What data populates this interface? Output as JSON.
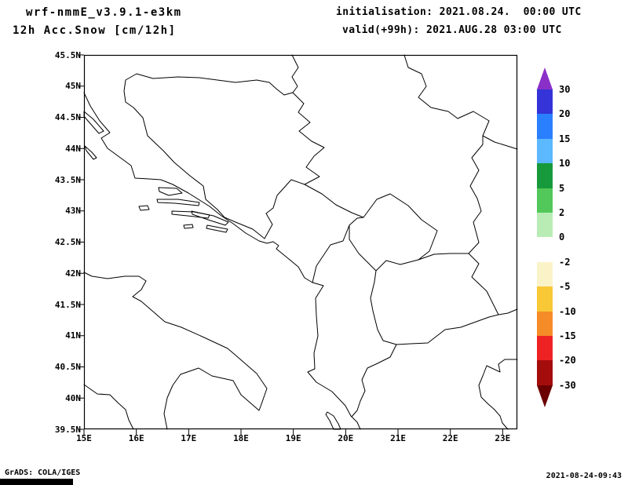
{
  "header": {
    "model_version": "wrf-nmmE_v3.9.1-e3km",
    "product": "12h Acc.Snow [cm/12h]",
    "initialisation": "initialisation: 2021.08.24.  00:00 UTC",
    "valid": "valid(+99h): 2021.AUG.28 03:00 UTC"
  },
  "axes": {
    "lat_ticks": [
      {
        "label": "45.5N",
        "value": 45.5
      },
      {
        "label": "45N",
        "value": 45
      },
      {
        "label": "44.5N",
        "value": 44.5
      },
      {
        "label": "44N",
        "value": 44
      },
      {
        "label": "43.5N",
        "value": 43.5
      },
      {
        "label": "43N",
        "value": 43
      },
      {
        "label": "42.5N",
        "value": 42.5
      },
      {
        "label": "42N",
        "value": 42
      },
      {
        "label": "41.5N",
        "value": 41.5
      },
      {
        "label": "41N",
        "value": 41
      },
      {
        "label": "40.5N",
        "value": 40.5
      },
      {
        "label": "40N",
        "value": 40
      },
      {
        "label": "39.5N",
        "value": 39.5
      }
    ],
    "lon_ticks": [
      {
        "label": "15E",
        "value": 15
      },
      {
        "label": "16E",
        "value": 16
      },
      {
        "label": "17E",
        "value": 17
      },
      {
        "label": "18E",
        "value": 18
      },
      {
        "label": "19E",
        "value": 19
      },
      {
        "label": "20E",
        "value": 20
      },
      {
        "label": "21E",
        "value": 21
      },
      {
        "label": "22E",
        "value": 22
      },
      {
        "label": "23E",
        "value": 23
      }
    ]
  },
  "colorbar": {
    "labels": [
      "30",
      "20",
      "15",
      "10",
      "5",
      "2",
      "0",
      "-2",
      "-5",
      "-10",
      "-15",
      "-20",
      "-30"
    ],
    "top_color": "#8b2fc9",
    "bottom_color": "#6b0000",
    "segment_colors": [
      "#3434d8",
      "#2a7fff",
      "#5cb8ff",
      "#169a3c",
      "#52c85a",
      "#b9ecb4",
      "#ffffff",
      "#fbf3c8",
      "#f8c836",
      "#f58c28",
      "#ee2222",
      "#a50d0d"
    ]
  },
  "footer": {
    "credit": "GrADS: COLA/IGES",
    "timestamp": "2021-08-24-09:43"
  }
}
